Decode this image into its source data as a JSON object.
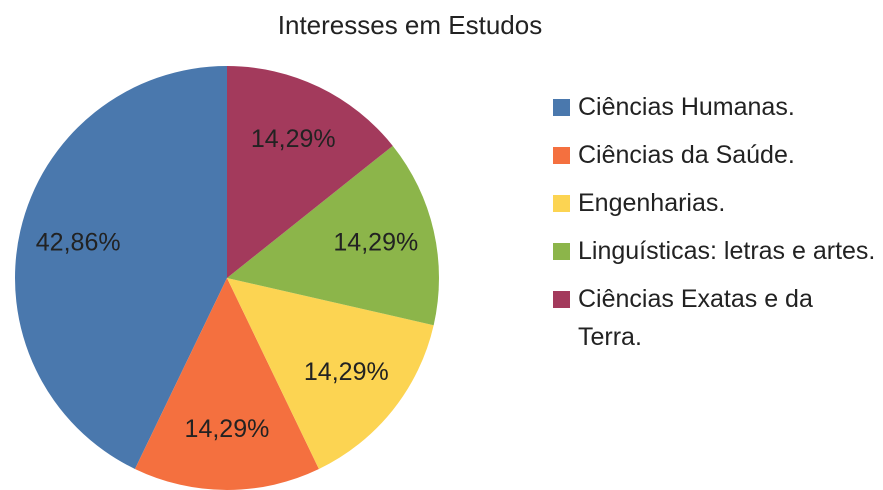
{
  "chart_data": {
    "type": "pie",
    "title": "Interesses em Estudos",
    "categories": [
      "Ciências Humanas.",
      "Ciências da Saúde.",
      "Engenharias.",
      "Linguísticas: letras e artes.",
      "Ciências Exatas e da Terra."
    ],
    "values": [
      42.86,
      14.29,
      14.29,
      14.29,
      14.29
    ],
    "value_labels": [
      "42,86%",
      "14,29%",
      "14,29%",
      "14,29%",
      "14,29%"
    ],
    "colors": [
      "#4a78ad",
      "#f4703f",
      "#fcd452",
      "#8cb54a",
      "#a33a5c"
    ],
    "direction": "counterclockwise",
    "legend": "right"
  }
}
